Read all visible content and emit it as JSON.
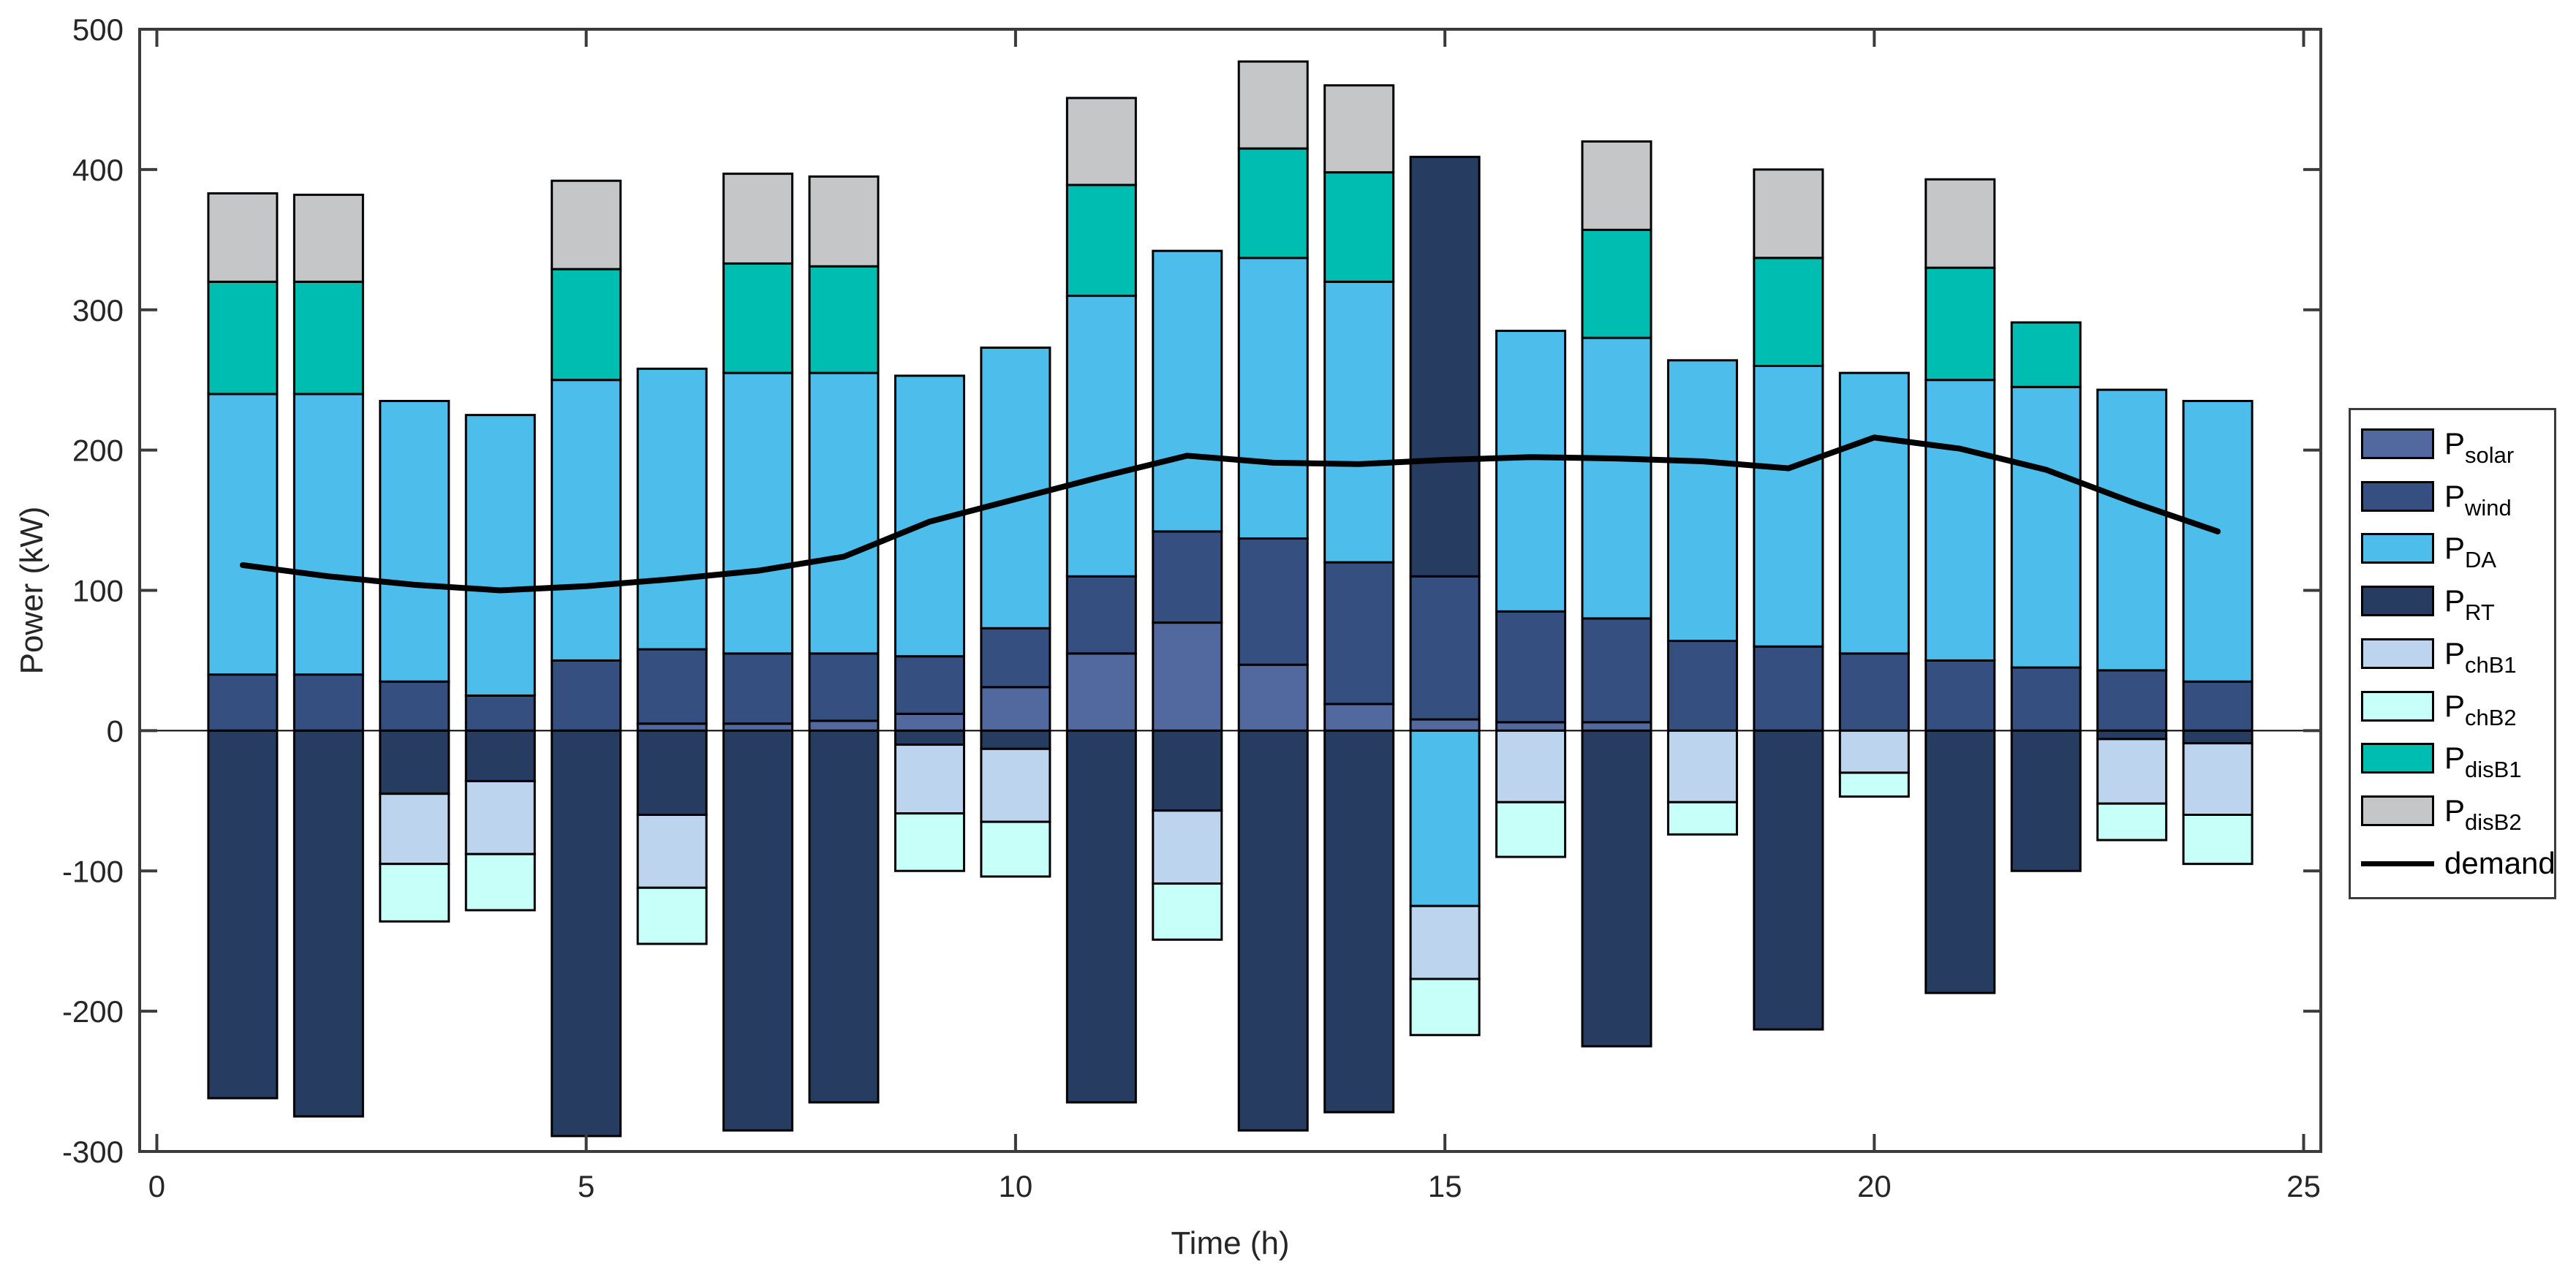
{
  "figure": {
    "background_color": "#ffffff",
    "frame_color": "#3b3b3b"
  },
  "chart_data": {
    "type": "bar",
    "bar_mode": "stacked",
    "title": "",
    "xlabel": "Time (h)",
    "ylabel": "Power (kW)",
    "xlim": [
      -0.2,
      25.2
    ],
    "ylim": [
      -300,
      500
    ],
    "xticks": [
      0,
      5,
      10,
      15,
      20,
      25
    ],
    "yticks": [
      -300,
      -200,
      -100,
      0,
      100,
      200,
      300,
      400,
      500
    ],
    "grid": "off",
    "zero_line": true,
    "x": [
      1,
      2,
      3,
      4,
      5,
      6,
      7,
      8,
      9,
      10,
      11,
      12,
      13,
      14,
      15,
      16,
      17,
      18,
      19,
      20,
      21,
      22,
      23,
      24
    ],
    "series": [
      {
        "name": "P_solar",
        "legend_main": "P",
        "legend_sub": "solar",
        "color": "#5269A0",
        "values": [
          0,
          0,
          0,
          0,
          0,
          5,
          5,
          7,
          12,
          31,
          55,
          77,
          47,
          19,
          8,
          6,
          6,
          0,
          0,
          0,
          0,
          0,
          0,
          0
        ]
      },
      {
        "name": "P_wind",
        "legend_main": "P",
        "legend_sub": "wind",
        "color": "#344F80",
        "values": [
          40,
          40,
          35,
          25,
          50,
          53,
          50,
          48,
          41,
          42,
          55,
          65,
          90,
          101,
          102,
          79,
          74,
          64,
          60,
          55,
          50,
          45,
          43,
          35
        ]
      },
      {
        "name": "P_DA",
        "legend_main": "P",
        "legend_sub": "DA",
        "color": "#4DBEEB",
        "values": [
          200,
          200,
          200,
          200,
          200,
          200,
          200,
          200,
          200,
          200,
          200,
          200,
          200,
          200,
          -125,
          200,
          200,
          200,
          200,
          200,
          200,
          200,
          200,
          200
        ]
      },
      {
        "name": "P_RT",
        "legend_main": "P",
        "legend_sub": "RT",
        "color": "#263C61",
        "values": [
          -262,
          -275,
          -45,
          -36,
          -289,
          -60,
          -285,
          -265,
          -10,
          -13,
          -265,
          -57,
          -285,
          -272,
          299,
          0,
          -225,
          0,
          -213,
          0,
          -187,
          -100,
          -6,
          -9
        ]
      },
      {
        "name": "P_chB1",
        "legend_main": "P",
        "legend_sub": "chB1",
        "color": "#BDD4EE",
        "values": [
          0,
          0,
          -50,
          -52,
          0,
          -52,
          0,
          0,
          -49,
          -52,
          0,
          -52,
          0,
          0,
          -52,
          -51,
          0,
          -51,
          0,
          -30,
          0,
          0,
          -46,
          -51
        ]
      },
      {
        "name": "P_chB2",
        "legend_main": "P",
        "legend_sub": "chB2",
        "color": "#C7FFF9",
        "values": [
          0,
          0,
          -41,
          -40,
          0,
          -40,
          0,
          0,
          -41,
          -39,
          0,
          -40,
          0,
          0,
          -40,
          -39,
          0,
          -23,
          0,
          -17,
          0,
          0,
          -26,
          -35
        ]
      },
      {
        "name": "P_disB1",
        "legend_main": "P",
        "legend_sub": "disB1",
        "color": "#00BDB2",
        "values": [
          80,
          80,
          0,
          0,
          79,
          0,
          78,
          76,
          0,
          0,
          79,
          0,
          78,
          78,
          0,
          0,
          77,
          0,
          77,
          0,
          80,
          46,
          0,
          0
        ]
      },
      {
        "name": "P_disB2",
        "legend_main": "P",
        "legend_sub": "disB2",
        "color": "#C5C6C8",
        "values": [
          63,
          62,
          0,
          0,
          63,
          0,
          64,
          64,
          0,
          0,
          62,
          0,
          62,
          62,
          0,
          0,
          63,
          0,
          63,
          0,
          63,
          0,
          0,
          0
        ]
      }
    ],
    "line_series": {
      "name": "demand",
      "color": "#000000",
      "values": [
        118,
        110,
        104,
        100,
        103,
        108,
        114,
        124,
        149,
        165,
        181,
        196,
        191,
        190,
        193,
        195,
        194,
        192,
        187,
        209,
        201,
        186,
        163,
        142
      ]
    },
    "legend": {
      "position": "right-outside",
      "entries": [
        "P_solar",
        "P_wind",
        "P_DA",
        "P_RT",
        "P_chB1",
        "P_chB2",
        "P_disB1",
        "P_disB2",
        "demand"
      ]
    }
  }
}
